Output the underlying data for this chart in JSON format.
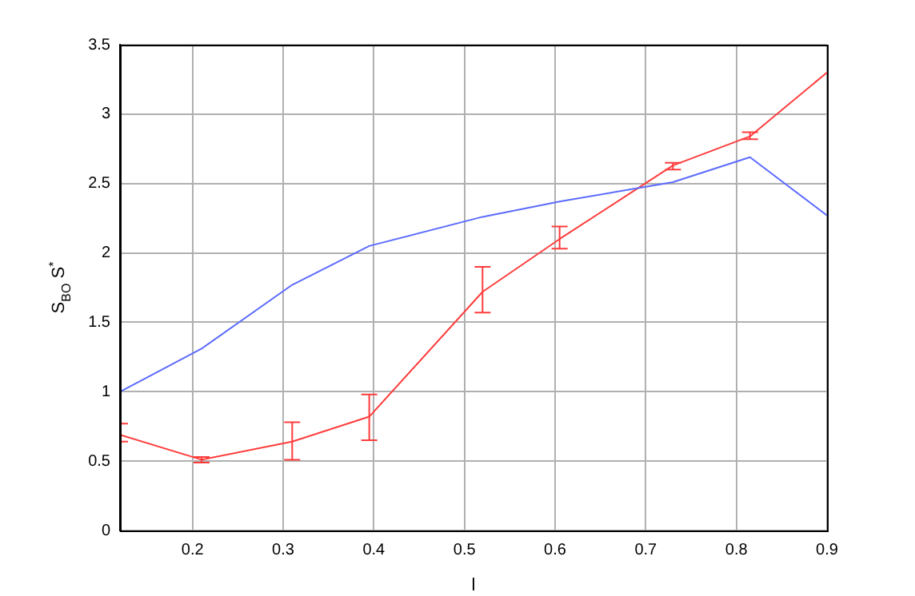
{
  "chart_data": {
    "type": "line",
    "xlabel": "l",
    "ylabel": "S$_{BO}$ S$^{*}$",
    "xlim": [
      0.12,
      0.9
    ],
    "xticks": [
      0.2,
      0.3,
      0.4,
      0.5,
      0.6,
      0.7,
      0.8,
      0.9
    ],
    "ylim": [
      0,
      3.5
    ],
    "yticks": [
      0,
      0.5,
      1,
      1.5,
      2,
      2.5,
      3,
      3.5
    ],
    "grid": true,
    "line_style": "solid",
    "series": [
      {
        "color": "#5b6bff",
        "x": [
          0.12,
          0.21,
          0.31,
          0.395,
          0.52,
          0.605,
          0.73,
          0.815,
          0.9
        ],
        "values": [
          1.0,
          1.31,
          1.77,
          2.05,
          2.26,
          2.37,
          2.51,
          2.69,
          2.27
        ]
      },
      {
        "color": "#ff3c3c",
        "x": [
          0.12,
          0.21,
          0.31,
          0.395,
          0.52,
          0.605,
          0.73,
          0.815,
          0.9
        ],
        "values": [
          0.69,
          0.51,
          0.64,
          0.82,
          1.72,
          2.1,
          2.63,
          2.84,
          3.3
        ],
        "errors": [
          [
            0.64,
            0.77
          ],
          [
            0.49,
            0.53
          ],
          [
            0.51,
            0.78
          ],
          [
            0.65,
            0.98
          ],
          [
            1.57,
            1.9
          ],
          [
            2.03,
            2.19
          ],
          [
            2.6,
            2.65
          ],
          [
            2.82,
            2.87
          ],
          null
        ]
      }
    ]
  }
}
